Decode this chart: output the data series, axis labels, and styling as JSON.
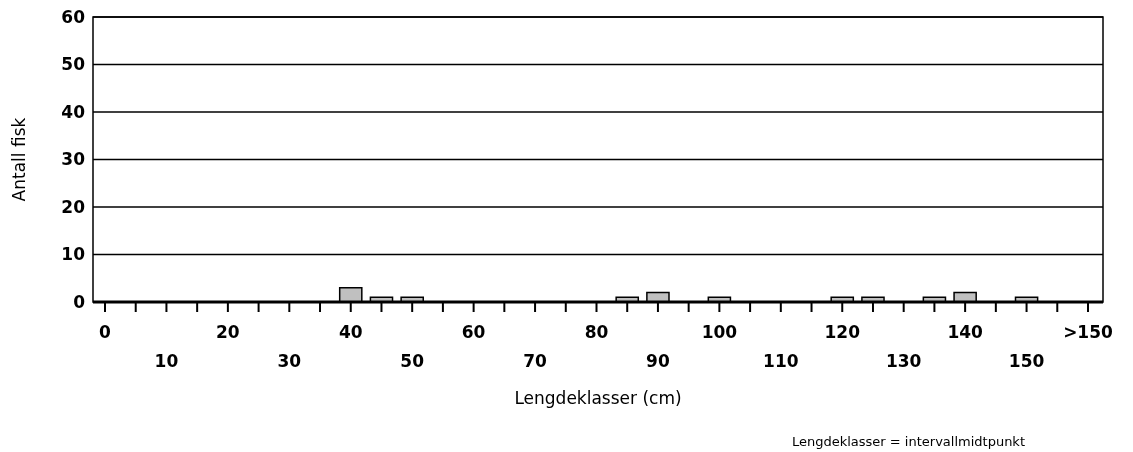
{
  "chart_data": {
    "type": "bar",
    "xlabel": "Lengdeklasser (cm)",
    "ylabel": "Antall fisk",
    "categories": [
      "0",
      null,
      "10",
      null,
      "20",
      null,
      "30",
      null,
      "40",
      null,
      "50",
      null,
      "60",
      null,
      "70",
      null,
      "80",
      null,
      "90",
      null,
      "100",
      null,
      "110",
      null,
      "120",
      null,
      "130",
      null,
      "140",
      null,
      "150",
      null,
      ">150"
    ],
    "values": [
      0,
      0,
      0,
      0,
      0,
      0,
      0,
      0,
      3,
      1,
      1,
      0,
      0,
      0,
      0,
      0,
      0,
      1,
      2,
      0,
      1,
      0,
      0,
      0,
      1,
      1,
      0,
      1,
      2,
      0,
      1,
      0,
      0
    ],
    "color": "#c0c0c0",
    "ylim": [
      0,
      60
    ],
    "yticks": [
      0,
      10,
      20,
      30,
      40,
      50,
      60
    ],
    "grid": "y",
    "annotations": [
      "Lengdeklasser = intervallmidtpunkt"
    ]
  }
}
